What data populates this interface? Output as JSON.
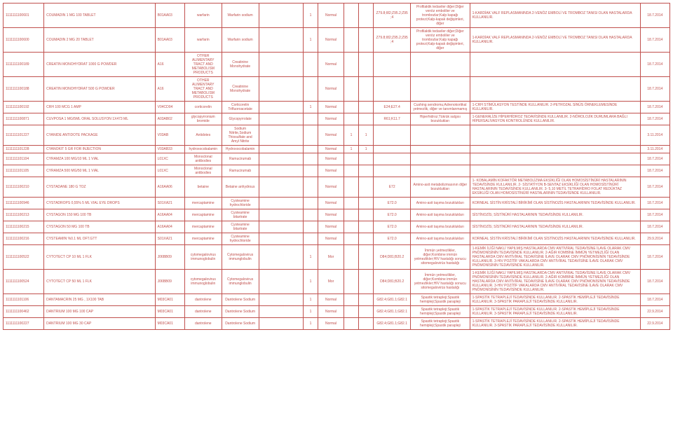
{
  "table": {
    "border_color": "#c0504d",
    "text_color": "#c0504d",
    "font_size": 5,
    "rows": [
      {
        "c1": "1111111100601",
        "c2": "COUMADIN 1 MG 100 TABLET",
        "c3": "B01AA03",
        "c4": "warfarin",
        "c5": "Warfarin sodium",
        "c6": "",
        "c7": "1",
        "c8": "Normal",
        "c9": "",
        "c10": "",
        "c11": "Z79.8;I82;Z95.2;Z95;4",
        "c12": "Profilaktik tedaviler diğer;Diğer venöz emboliler ve trombozlar;Kalp kapağı protezi;Kalp-kapak değişimleri, diğer",
        "c13": "1-KARDİAK VALF REPLASMANINDA\n2-VENÖZ EMBOLİ VE TROMBOZ TANISI OLAN HASTALARDA KULLANILIR.",
        "c14": "18.7.2014"
      },
      {
        "c1": "1111111100600",
        "c2": "COUMADIN 2 MG 20 TABLET",
        "c3": "B01AA03",
        "c4": "warfarin",
        "c5": "Warfarin sodium",
        "c6": "",
        "c7": "1",
        "c8": "Normal",
        "c9": "",
        "c10": "",
        "c11": "Z79.8;I82;Z95.2;Z95;4",
        "c12": "Profilaktik tedaviler diğer;Diğer venöz emboliler ve trombozlar;Kalp kapağı protezi;Kalp-kapak değişimleri, diğer",
        "c13": "1-KARDİAK VALF REPLASMANINDA\n2-VENÖZ EMBOLİ VE TROMBOZ TANISI OLAN HASTALARDA KULLANILIR.",
        "c14": "18.7.2014"
      },
      {
        "c1": "1111111100189",
        "c2": "CREATIN MONOHYDRAT 1000 G POWDER",
        "c3": "A16",
        "c4": "OTHER ALIMENTARY TRACT AND METABOLISM PRODUCTS",
        "c5": "Creatinine Monohydrate",
        "c6": "",
        "c7": "",
        "c8": "Normal",
        "c9": "",
        "c10": "",
        "c11": "",
        "c12": "",
        "c13": "",
        "c14": "18.7.2014"
      },
      {
        "c1": "1111111100188",
        "c2": "CREATIN MONOHYDRAT 500 G POWDER",
        "c3": "A16",
        "c4": "OTHER ALIMENTARY TRACT AND METABOLISM PRODUCTS",
        "c5": "Creatinine Monohydrate",
        "c6": "",
        "c7": "",
        "c8": "Normal",
        "c9": "",
        "c10": "",
        "c11": "",
        "c12": "",
        "c13": "",
        "c14": "18.7.2014"
      },
      {
        "c1": "1111111100192",
        "c2": "CRH 100 MCG 1 AMP",
        "c3": "V04CD04",
        "c4": "corticorelin",
        "c5": "Corticorelin Trifluoroacetate",
        "c6": "",
        "c7": "1",
        "c8": "Normal",
        "c9": "",
        "c10": "",
        "c11": "E24;E27.4",
        "c12": "Cushing sendromu;Adrenokortikal yetmezlik, diğer ve tanımlanmamış",
        "c13": "1-CRH STİMÜLASYON TESTİNDE KULLANILIR.\n2-PETROZAL SİNÜS ÖRNEKLEMESİNDE KULLANILIR.",
        "c14": "18.7.2014"
      },
      {
        "c1": "1111111100871",
        "c2": "CUVPOSA 1 MG/5ML ORAL SOLUSYON 1X473 ML",
        "c3": "A03AB02",
        "c4": "glycopyrronium bromide",
        "c5": "Glycopyrrolate",
        "c6": "",
        "c7": "",
        "c8": "Normal",
        "c9": "",
        "c10": "",
        "c11": "R61;K11.7",
        "c12": "Hiperhidroz;Tükrük salgısı bozuklukları",
        "c13": "1-GENERALİZE HİPERHİDROZ TEDAVİSİNDE KULLANILIR.\n2-NÖROLOJİK DURUMLARA BAĞLI HİPERSALİVASYON KONTROLÜNDE KULLANILIR.",
        "c14": "18.7.2014"
      },
      {
        "c1": "1111111101227",
        "c2": "CYANIDE ANTIDOTE PACKAGE",
        "c3": "V03AB",
        "c4": "Antidotes",
        "c5": "Sodium Nitrite,Sodium Thiosulfate and Amyl Nitrite",
        "c6": "",
        "c7": "",
        "c8": "Normal",
        "c9": "1",
        "c10": "1",
        "c11": "",
        "c12": "",
        "c13": "",
        "c14": "3.11.2014"
      },
      {
        "c1": "1111111101228",
        "c2": "CYANOKIT 5 GR FOR INJECTION",
        "c3": "V03AB33",
        "c4": "hydroxocobalamin",
        "c5": "Hydroxocobalamin",
        "c6": "",
        "c7": "",
        "c8": "Normal",
        "c9": "1",
        "c10": "1",
        "c11": "",
        "c12": "",
        "c13": "",
        "c14": "3.11.2014"
      },
      {
        "c1": "1111111101104",
        "c2": "CYRAMZA 100 MG/10 ML 1 VIAL",
        "c3": "L01XC",
        "c4": "Monoclonal antibodies",
        "c5": "Ramucirumab",
        "c6": "",
        "c7": "",
        "c8": "Normal",
        "c9": "",
        "c10": "",
        "c11": "",
        "c12": "",
        "c13": "",
        "c14": "18.7.2014"
      },
      {
        "c1": "1111111101105",
        "c2": "CYRAMZA 500 MG/50 ML 1 VIAL",
        "c3": "L01XC",
        "c4": "Monoclonal antibodies",
        "c5": "Ramucirumab",
        "c6": "",
        "c7": "",
        "c8": "Normal",
        "c9": "",
        "c10": "",
        "c11": "",
        "c12": "",
        "c13": "",
        "c14": "18.7.2014"
      },
      {
        "c1": "1111111100210",
        "c2": "CYSTADANE 180 G TOZ",
        "c3": "A16AA06",
        "c4": "betaine",
        "c5": "Betaine anhydrous",
        "c6": "",
        "c7": "",
        "c8": "Normal",
        "c9": "",
        "c10": "",
        "c11": "E72",
        "c12": "Amino-asit metabolizmasının diğer bozuklukları",
        "c13": "1- KOBALAMİN KOFAKTÖR METABOLİZMA EKSİKLİĞİ OLAN HOMOSİSTİNÜRİ HASTALARININ TEDAVİSİNDE KULLANILIR.\n2- SİSTATİYON B-SENTAZ EKSİKLİĞİ OLAN HOMOSİSTİNÜRİ HASTALARININ TEDAVİSİNDE KULLANILIR.\n3- 5,10 METİL TETRAHİDRO FOLAT REDÜKTAZ EKSİKLİĞİ OLAN HOMOSİSTİNÜRİ HASTALARININ TEDAVİSİNDE KULLANILIR.",
        "c14": "18.7.2014"
      },
      {
        "c1": "1111111100946",
        "c2": "CYSTADROPS 0,55% 5 ML VIAL EYE DROPS",
        "c3": "S01XA21",
        "c4": "mercaptamine",
        "c5": "Cysteamine hydrochloride",
        "c6": "",
        "c7": "",
        "c8": "Normal",
        "c9": "",
        "c10": "",
        "c11": "E72.0",
        "c12": "Amino-asit taşıma bozuklukları",
        "c13": "KORNEAL SİSTİN KRİSTALİ BİRİKİMİ OLAN SİSTİNOZİS HASTALARININ TEDAVİSİNDE KULLANILIR.",
        "c14": "18.7.2014"
      },
      {
        "c1": "1111111100213",
        "c2": "CYSTAGON 150 MG 100 TB",
        "c3": "A16AA04",
        "c4": "mercaptamine",
        "c5": "Cysteamine bitartrate",
        "c6": "",
        "c7": "",
        "c8": "Normal",
        "c9": "",
        "c10": "",
        "c11": "E72.0",
        "c12": "Amino-asit taşıma bozuklukları",
        "c13": "SİSTİNOZİS; SİSTİNÜRİ HASTALARININ TEDAVİSİNDE KULLANILIR.",
        "c14": "18.7.2014"
      },
      {
        "c1": "1111111100215",
        "c2": "CYSTAGON 50 MG 100 TB",
        "c3": "A16AA04",
        "c4": "mercaptamine",
        "c5": "Cysteamine bitartrate",
        "c6": "",
        "c7": "",
        "c8": "Normal",
        "c9": "",
        "c10": "",
        "c11": "E72.0",
        "c12": "Amino-asit taşıma bozuklukları",
        "c13": "SİSTİNOZİS; SİSTİNÜRİ HASTALARININ TEDAVİSİNDE KULLANILIR.",
        "c14": "18.7.2014"
      },
      {
        "c1": "1111111100216",
        "c2": "CYSTEAMIN %0.1 ML OFT.GTT",
        "c3": "S01XA21",
        "c4": "mercaptamine",
        "c5": "Cysteamine hydrochloride",
        "c6": "",
        "c7": "",
        "c8": "Normal",
        "c9": "",
        "c10": "",
        "c11": "E72.0",
        "c12": "Amino-asit taşıma bozuklukları",
        "c13": "KORNEAL SİSTİN KRİSTALİ BİRİKİMİ OLAN SİSTİNOZİS HASTALARININ TEDAVİSİNDE KULLANILIR.",
        "c14": "29.9.2014"
      },
      {
        "c1": "1111111100522",
        "c2": "CYTOTECT CP 10 ML 1 FLK",
        "c3": "J06BB09",
        "c4": "cytomegalovirus immunoglobulin",
        "c5": "Cytomegalovirus immunglobulin",
        "c6": "",
        "c7": "1",
        "c8": "Mor",
        "c9": "",
        "c10": "",
        "c11": "D84;D81;B20.2",
        "c12": "İmmün yetmezlikler, diğer;Kombine immün yetmezlikler;HIV hastalığı sonucu sitomegalovirüs hastalığı",
        "c13": "1-KEMİK İLİĞİ NAKLİ YAPILMIŞ HASTALARDA CMV ANTİVİRAL TEDAVİSİNE İLAVE OLARAK CMV PNÖMONİSİNİN TEDAVİSİNDE KULLANILIR.\n2-AĞIR KOMBİNE İMMÜN YETMEZLİĞİ OLAN HASTALARDA CMV ANTİVİRAL TEDAVİSİNE İLAVE OLARAK CMV PNÖMONİSİNİN TEDAVİSİNDE KULLANILIR.\n3-HIV POZİTİF VAKALARDA CMV ANTİVİRAL TEDAVİSİNE İLAVE OLARAK CMV PNÖMONİSİNİN TEDAVİSİNDE KULLANILIR.",
        "c14": "18.7.2014"
      },
      {
        "c1": "1111111100524",
        "c2": "CYTOTECT CP 50 ML 1 FLK",
        "c3": "J06BB09",
        "c4": "cytomegalovirus immunoglobulin",
        "c5": "Cytomegalovirus immunglobulin",
        "c6": "",
        "c7": "1",
        "c8": "Mor",
        "c9": "",
        "c10": "",
        "c11": "D84;D81;B20.2",
        "c12": "İmmün yetmezlikler, diğer;Kombine immün yetmezlikler;HIV hastalığı sonucu sitomegalovirüs hastalığı",
        "c13": "1-KEMİK İLİĞİ NAKLİ YAPILMIŞ HASTALARDA CMV ANTİVİRAL TEDAVİSİNE İLAVE OLARAK CMV PNÖMONİSİNİN TEDAVİSİNDE KULLANILIR.\n2-AĞIR KOMBİNE İMMÜN YETMEZLİĞİ OLAN HASTALARDA CMV ANTİVİRAL TEDAVİSİNE İLAVE OLARAK CMV PNÖMONİSİNİN TEDAVİSİNDE KULLANILIR.\n3-HIV POZİTİF VAKALARDA CMV ANTİVİRAL TEDAVİSİNE İLAVE OLARAK CMV PNÖMONİSİNİN TEDAVİSİNDE KULLANILIR.",
        "c14": "18.7.2014"
      },
      {
        "c1": "1111111101106",
        "c2": "DANTAMACRIN 25 MG , 1X100 TAB",
        "c3": "M03CA01",
        "c4": "dantrolene",
        "c5": "Dantrolene Sodium",
        "c6": "",
        "c7": "1",
        "c8": "Normal",
        "c9": "",
        "c10": "",
        "c11": "G82.4;G81.1;G82.1",
        "c12": "Spastik tetrapleji;Spastik hemipleji;Spastik parapleji",
        "c13": "1-SPASTİK TETRAPLEJİ TEDAVİSİNDE KULLANILIR.\n2-SPASTİK HEMİPLEJİ TEDAVİSİNDE KULLANILIR.\n3-SPASTİK PARAPLEJİ TEDAVİSİNDE KULLANILIR.",
        "c14": "18.7.2014"
      },
      {
        "c1": "1111111100462",
        "c2": "DANTRIUM 100 MG 100 CAP",
        "c3": "M03CA01",
        "c4": "dantrolene",
        "c5": "Dantrolene Sodium",
        "c6": "",
        "c7": "1",
        "c8": "Normal",
        "c9": "",
        "c10": "",
        "c11": "G82.4;G81.1;G82.1",
        "c12": "Spastik tetrapleji;Spastik hemipleji;Spastik parapleji",
        "c13": "1-SPASTİK TETRAPLEJİ TEDAVİSİNDE KULLANILIR.\n2-SPASTİK HEMİPLEJİ TEDAVİSİNDE KULLANILIR.\n3-SPASTİK PARAPLEJİ TEDAVİSİNDE KULLANILIR.",
        "c14": "22.9.2014"
      },
      {
        "c1": "1111111100227",
        "c2": "DANTRIUM 100 MG 30 CAP",
        "c3": "M03CA01",
        "c4": "dantrolene",
        "c5": "Dantrolene Sodium",
        "c6": "",
        "c7": "1",
        "c8": "Normal",
        "c9": "",
        "c10": "",
        "c11": "G82.4;G81.1;G82.1",
        "c12": "Spastik tetrapleji;Spastik hemipleji;Spastik parapleji",
        "c13": "1-SPASTİK TETRAPLEJİ TEDAVİSİNDE KULLANILIR.\n2-SPASTİK HEMİPLEJİ TEDAVİSİNDE KULLANILIR.\n3-SPASTİK PARAPLEJİ TEDAVİSİNDE KULLANILIR.",
        "c14": "22.9.2014"
      }
    ]
  }
}
